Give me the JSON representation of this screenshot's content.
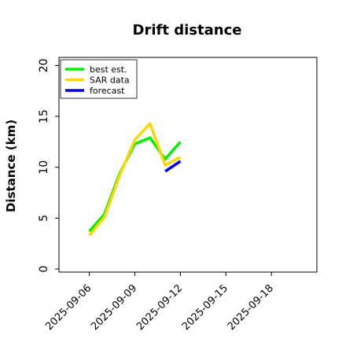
{
  "chart_data": {
    "type": "line",
    "title": "Drift distance",
    "xlabel": "",
    "ylabel": "Distance (km)",
    "xlim": [
      "2025-09-04",
      "2025-09-21"
    ],
    "ylim": [
      -0.3,
      20.8
    ],
    "yticks": [
      0,
      5,
      10,
      15,
      20
    ],
    "xticks": [
      "2025-09-06",
      "2025-09-09",
      "2025-09-12",
      "2025-09-15",
      "2025-09-18"
    ],
    "grid": false,
    "legend_position": "top-left",
    "series": [
      {
        "name": "best est.",
        "color": "#00ee00",
        "x": [
          "2025-09-06",
          "2025-09-07",
          "2025-09-08",
          "2025-09-09",
          "2025-09-10",
          "2025-09-11",
          "2025-09-12"
        ],
        "y": [
          3.7,
          5.4,
          9.4,
          12.3,
          12.9,
          10.8,
          12.5
        ]
      },
      {
        "name": "SAR data",
        "color": "#ffd700",
        "x": [
          "2025-09-06",
          "2025-09-07",
          "2025-09-08",
          "2025-09-09",
          "2025-09-10",
          "2025-09-11",
          "2025-09-12"
        ],
        "y": [
          3.3,
          5.1,
          9.2,
          12.7,
          14.3,
          10.2,
          11.0
        ]
      },
      {
        "name": "forecast",
        "color": "#0000ee",
        "x": [
          "2025-09-11",
          "2025-09-12"
        ],
        "y": [
          9.6,
          10.6
        ]
      }
    ]
  }
}
